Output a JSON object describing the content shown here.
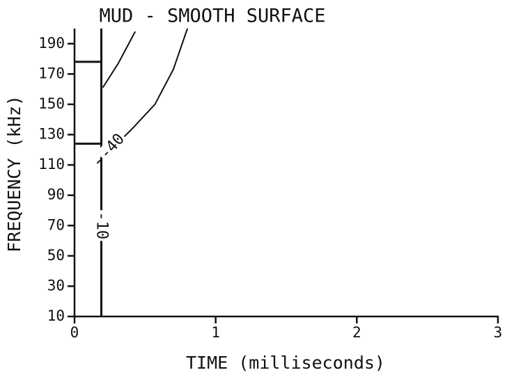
{
  "chart_data": {
    "type": "contour",
    "title": "MUD - SMOOTH SURFACE",
    "xlabel": "TIME (milliseconds)",
    "ylabel": "FREQUENCY (kHz)",
    "xlim": [
      0,
      3
    ],
    "xticks": [
      0,
      1,
      2,
      3
    ],
    "ylim": [
      10,
      200
    ],
    "yticks": [
      10,
      30,
      50,
      70,
      90,
      110,
      130,
      150,
      170,
      190
    ],
    "series": [
      {
        "name": "-10",
        "color": "#111111",
        "x": [
          0.19,
          0.19,
          null,
          0,
          0.19,
          null,
          0,
          0.19
        ],
        "y": [
          200,
          10,
          null,
          178,
          178,
          null,
          124,
          124
        ]
      },
      {
        "name": "-40",
        "color": "#111111",
        "x": [
          0.16,
          0.41,
          0.57,
          0.7,
          0.8,
          null,
          0.2,
          0.31,
          0.43
        ],
        "y": [
          111,
          134,
          150,
          173,
          200,
          null,
          161,
          177,
          198
        ]
      }
    ]
  }
}
